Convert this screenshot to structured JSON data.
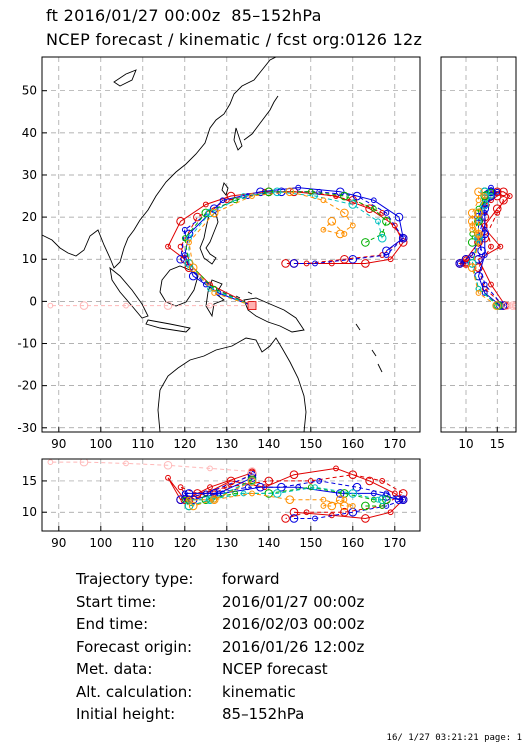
{
  "header": {
    "line1": "ft 2016/01/27 00:00z  85–152hPa",
    "line2": "NCEP forecast / kinematic / fcst org:0126 12z"
  },
  "chart_data": {
    "type": "trajectory-map",
    "main_map": {
      "xlim": [
        86,
        176
      ],
      "ylim": [
        -31,
        58
      ],
      "x_ticks": [
        90,
        100,
        110,
        120,
        130,
        140,
        150,
        160,
        170
      ],
      "y_ticks": [
        -30,
        -20,
        -10,
        0,
        10,
        20,
        30,
        40,
        50
      ],
      "grid": "dashed"
    },
    "lat_side_panel": {
      "xlim": [
        6,
        18
      ],
      "x_ticks": [
        10,
        15
      ]
    },
    "lon_bottom_panel": {
      "ylim": [
        7,
        18.5
      ],
      "y_ticks": [
        10,
        15
      ],
      "x_ticks": [
        90,
        100,
        110,
        120,
        130,
        140,
        150,
        160,
        170
      ]
    },
    "series": [
      {
        "color": "#e00000",
        "style": "solid",
        "points": [
          [
            136,
            -1
          ],
          [
            126,
            4
          ],
          [
            120,
            10
          ],
          [
            116,
            13
          ],
          [
            119,
            19
          ],
          [
            125,
            23
          ],
          [
            131,
            25
          ],
          [
            139,
            26
          ],
          [
            146,
            26
          ],
          [
            156,
            25
          ],
          [
            164,
            22
          ],
          [
            170,
            18
          ],
          [
            172,
            14
          ],
          [
            169,
            10
          ],
          [
            163,
            9
          ],
          [
            155,
            9
          ],
          [
            146,
            9
          ]
        ],
        "heights": [
          16.3,
          14,
          12,
          15.5,
          12,
          13,
          15,
          14,
          16,
          17,
          15,
          13,
          12,
          10,
          9,
          9.5,
          10
        ]
      },
      {
        "color": "#e00000",
        "style": "dashed",
        "points": [
          [
            136,
            -1
          ],
          [
            127,
            3
          ],
          [
            121,
            8
          ],
          [
            119,
            13
          ],
          [
            123,
            20
          ],
          [
            130,
            24
          ],
          [
            140,
            26
          ],
          [
            150,
            26
          ],
          [
            160,
            24
          ],
          [
            167,
            21
          ],
          [
            172,
            15
          ],
          [
            167,
            11
          ],
          [
            158,
            10
          ],
          [
            149,
            9
          ],
          [
            144,
            9
          ]
        ],
        "heights": [
          16.1,
          13,
          12,
          14,
          13,
          14,
          15,
          15,
          16,
          15,
          13,
          11,
          10,
          10,
          9
        ]
      },
      {
        "color": "#0000e0",
        "style": "dashed",
        "points": [
          [
            136,
            -1
          ],
          [
            125,
            4
          ],
          [
            119,
            10
          ],
          [
            120,
            17
          ],
          [
            127,
            22
          ],
          [
            135,
            25
          ],
          [
            143,
            26
          ],
          [
            152,
            26
          ],
          [
            161,
            25
          ],
          [
            168,
            21
          ],
          [
            172,
            15
          ],
          [
            168,
            11
          ],
          [
            160,
            10
          ],
          [
            151,
            9
          ],
          [
            146,
            9
          ]
        ],
        "heights": [
          15.9,
          13,
          12,
          13,
          13,
          14,
          14,
          15,
          14,
          13,
          12,
          11,
          10,
          9,
          9
        ]
      },
      {
        "color": "#0000e0",
        "style": "solid",
        "points": [
          [
            136,
            -1
          ],
          [
            128,
            2
          ],
          [
            122,
            6
          ],
          [
            120,
            11
          ],
          [
            121,
            16
          ],
          [
            129,
            24
          ],
          [
            138,
            26
          ],
          [
            147,
            27
          ],
          [
            157,
            26
          ],
          [
            165,
            24
          ],
          [
            171,
            20
          ],
          [
            172,
            15
          ],
          [
            168,
            12
          ]
        ],
        "heights": [
          15.5,
          13,
          12,
          13,
          13,
          13,
          14,
          14,
          13,
          13,
          12,
          12,
          12.5
        ]
      },
      {
        "color": "#00b000",
        "style": "dashed",
        "points": [
          [
            136,
            -1
          ],
          [
            127,
            3
          ],
          [
            121,
            9
          ],
          [
            120,
            15
          ],
          [
            125,
            21
          ],
          [
            132,
            24
          ],
          [
            140,
            26
          ],
          [
            150,
            26
          ],
          [
            158,
            25
          ],
          [
            165,
            22
          ],
          [
            168,
            19
          ],
          [
            167,
            16
          ],
          [
            163,
            14
          ]
        ],
        "heights": [
          15.2,
          12,
          11,
          12,
          12,
          13,
          13,
          14,
          13,
          12,
          12,
          11,
          11
        ]
      },
      {
        "color": "#00c0c0",
        "style": "dashed",
        "points": [
          [
            136,
            -1
          ],
          [
            126,
            3
          ],
          [
            121,
            9
          ],
          [
            121,
            15
          ],
          [
            126,
            21
          ],
          [
            134,
            25
          ],
          [
            142,
            26
          ],
          [
            151,
            25
          ],
          [
            160,
            23
          ],
          [
            166,
            19
          ],
          [
            167,
            15
          ]
        ],
        "heights": [
          15,
          12,
          11,
          12,
          12,
          13,
          13,
          14,
          13,
          12,
          12
        ]
      },
      {
        "color": "#ff9000",
        "style": "dashed",
        "points": [
          [
            136,
            -1
          ],
          [
            127,
            2
          ],
          [
            122,
            8
          ],
          [
            121,
            14
          ],
          [
            127,
            21
          ],
          [
            136,
            25
          ],
          [
            145,
            26
          ],
          [
            153,
            24
          ],
          [
            158,
            21
          ],
          [
            160,
            18
          ],
          [
            157,
            16
          ],
          [
            153,
            17
          ],
          [
            155,
            19
          ],
          [
            158,
            16
          ]
        ],
        "heights": [
          14.9,
          12,
          11,
          12,
          12,
          13,
          12,
          12,
          11,
          11,
          12,
          11,
          11,
          12
        ]
      },
      {
        "color": "#ffb8b8",
        "style": "dashed",
        "points": [
          [
            136,
            -1
          ],
          [
            126,
            -1
          ],
          [
            116,
            -1
          ],
          [
            106,
            -1
          ],
          [
            96,
            -1
          ],
          [
            88,
            -1
          ]
        ],
        "heights": [
          16.5,
          17,
          17.5,
          17.8,
          18,
          18
        ]
      }
    ]
  },
  "info": [
    {
      "label": "Trajectory type:",
      "value": "forward"
    },
    {
      "label": "Start time:",
      "value": "2016/01/27 00:00z"
    },
    {
      "label": "End time:",
      "value": "2016/02/03 00:00z"
    },
    {
      "label": "Forecast origin:",
      "value": "2016/01/26 12:00z"
    },
    {
      "label": "Met. data:",
      "value": "NCEP forecast"
    },
    {
      "label": "Alt. calculation:",
      "value": "kinematic"
    },
    {
      "label": "Initial height:",
      "value": "  85–152hPa"
    }
  ],
  "footer": "16/ 1/27 03:21:21 page: 1"
}
